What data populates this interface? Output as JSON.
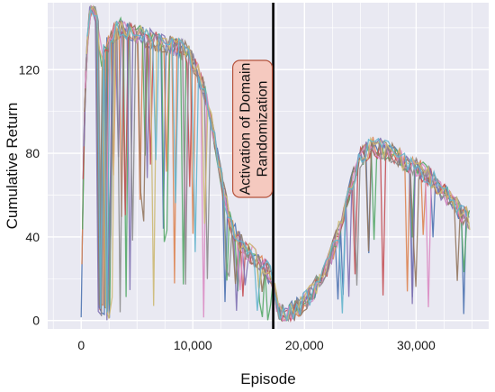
{
  "chart_data": {
    "type": "line",
    "title": "",
    "xlabel": "Episode",
    "ylabel": "Cumulative Return",
    "xlim": [
      -3000,
      36500
    ],
    "ylim": [
      -4,
      152
    ],
    "x_ticks": [
      0,
      10000,
      20000,
      30000
    ],
    "x_tick_labels": [
      "0",
      "10,000",
      "20,000",
      "30,000"
    ],
    "y_ticks": [
      0,
      40,
      80,
      120
    ],
    "y_tick_labels": [
      "0",
      "40",
      "80",
      "120"
    ],
    "grid": true,
    "legend": "none",
    "background_color": "#e9e9f2",
    "grid_color": "#ffffff",
    "series_colors": [
      "#4c72b0",
      "#dd8452",
      "#55a868",
      "#c44e52",
      "#8172b3",
      "#937860",
      "#da8bc3",
      "#8c8c8c",
      "#ccb974",
      "#64b5cd"
    ],
    "vline": {
      "x": 17200,
      "color": "#000000"
    },
    "annotation": {
      "lines": [
        "Activation of Domain",
        "Randomization"
      ],
      "box_color": "#f5c9bf",
      "border_color": "#b5533c"
    },
    "envelope": [
      [
        0,
        0
      ],
      [
        200,
        80
      ],
      [
        500,
        130
      ],
      [
        800,
        150
      ],
      [
        1200,
        148
      ],
      [
        1500,
        140
      ],
      [
        1800,
        125
      ],
      [
        2200,
        130
      ],
      [
        2600,
        135
      ],
      [
        3000,
        138
      ],
      [
        3500,
        140
      ],
      [
        4500,
        138
      ],
      [
        5500,
        136
      ],
      [
        6500,
        134
      ],
      [
        7500,
        132
      ],
      [
        8500,
        131
      ],
      [
        9500,
        128
      ],
      [
        10300,
        120
      ],
      [
        11000,
        110
      ],
      [
        11700,
        95
      ],
      [
        12200,
        80
      ],
      [
        12800,
        60
      ],
      [
        13500,
        45
      ],
      [
        14500,
        35
      ],
      [
        15500,
        30
      ],
      [
        16500,
        25
      ],
      [
        17200,
        20
      ],
      [
        17600,
        5
      ],
      [
        18300,
        2
      ],
      [
        19000,
        5
      ],
      [
        19800,
        8
      ],
      [
        20500,
        12
      ],
      [
        21200,
        18
      ],
      [
        22000,
        25
      ],
      [
        22800,
        38
      ],
      [
        23500,
        50
      ],
      [
        24200,
        65
      ],
      [
        25000,
        78
      ],
      [
        26000,
        83
      ],
      [
        27000,
        82
      ],
      [
        28000,
        80
      ],
      [
        29000,
        76
      ],
      [
        30000,
        73
      ],
      [
        31000,
        70
      ],
      [
        32000,
        64
      ],
      [
        33000,
        58
      ],
      [
        34000,
        52
      ],
      [
        34800,
        48
      ]
    ],
    "envelope_note": "Approximate smoothed trend of the overlaid training runs (no individual values printed)."
  }
}
